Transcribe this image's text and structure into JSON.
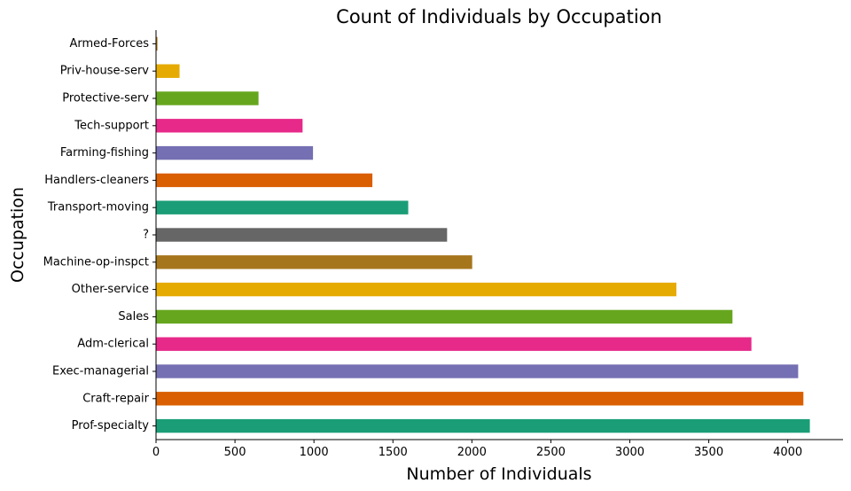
{
  "chart_data": {
    "type": "bar",
    "orientation": "horizontal",
    "title": "Count of Individuals by Occupation",
    "xlabel": "Number of Individuals",
    "ylabel": "Occupation",
    "xlim": [
      0,
      4350
    ],
    "xticks": [
      0,
      500,
      1000,
      1500,
      2000,
      2500,
      3000,
      3500,
      4000
    ],
    "grid": false,
    "legend": "none",
    "categories": [
      " Prof-specialty",
      " Craft-repair",
      " Exec-managerial",
      " Adm-clerical",
      " Sales",
      " Other-service",
      " Machine-op-inspct",
      " ?",
      " Transport-moving",
      " Handlers-cleaners",
      " Farming-fishing",
      " Tech-support",
      " Protective-serv",
      " Priv-house-serv",
      " Armed-Forces"
    ],
    "values": [
      4140,
      4099,
      4066,
      3770,
      3650,
      3295,
      2002,
      1843,
      1597,
      1370,
      994,
      928,
      649,
      149,
      9
    ],
    "colors": [
      "#1b9e77",
      "#d95f02",
      "#7570b3",
      "#e7298a",
      "#66a61e",
      "#e6ab02",
      "#a6761d",
      "#666666",
      "#1b9e77",
      "#d95f02",
      "#7570b3",
      "#e7298a",
      "#66a61e",
      "#e6ab02",
      "#a6761d"
    ]
  }
}
